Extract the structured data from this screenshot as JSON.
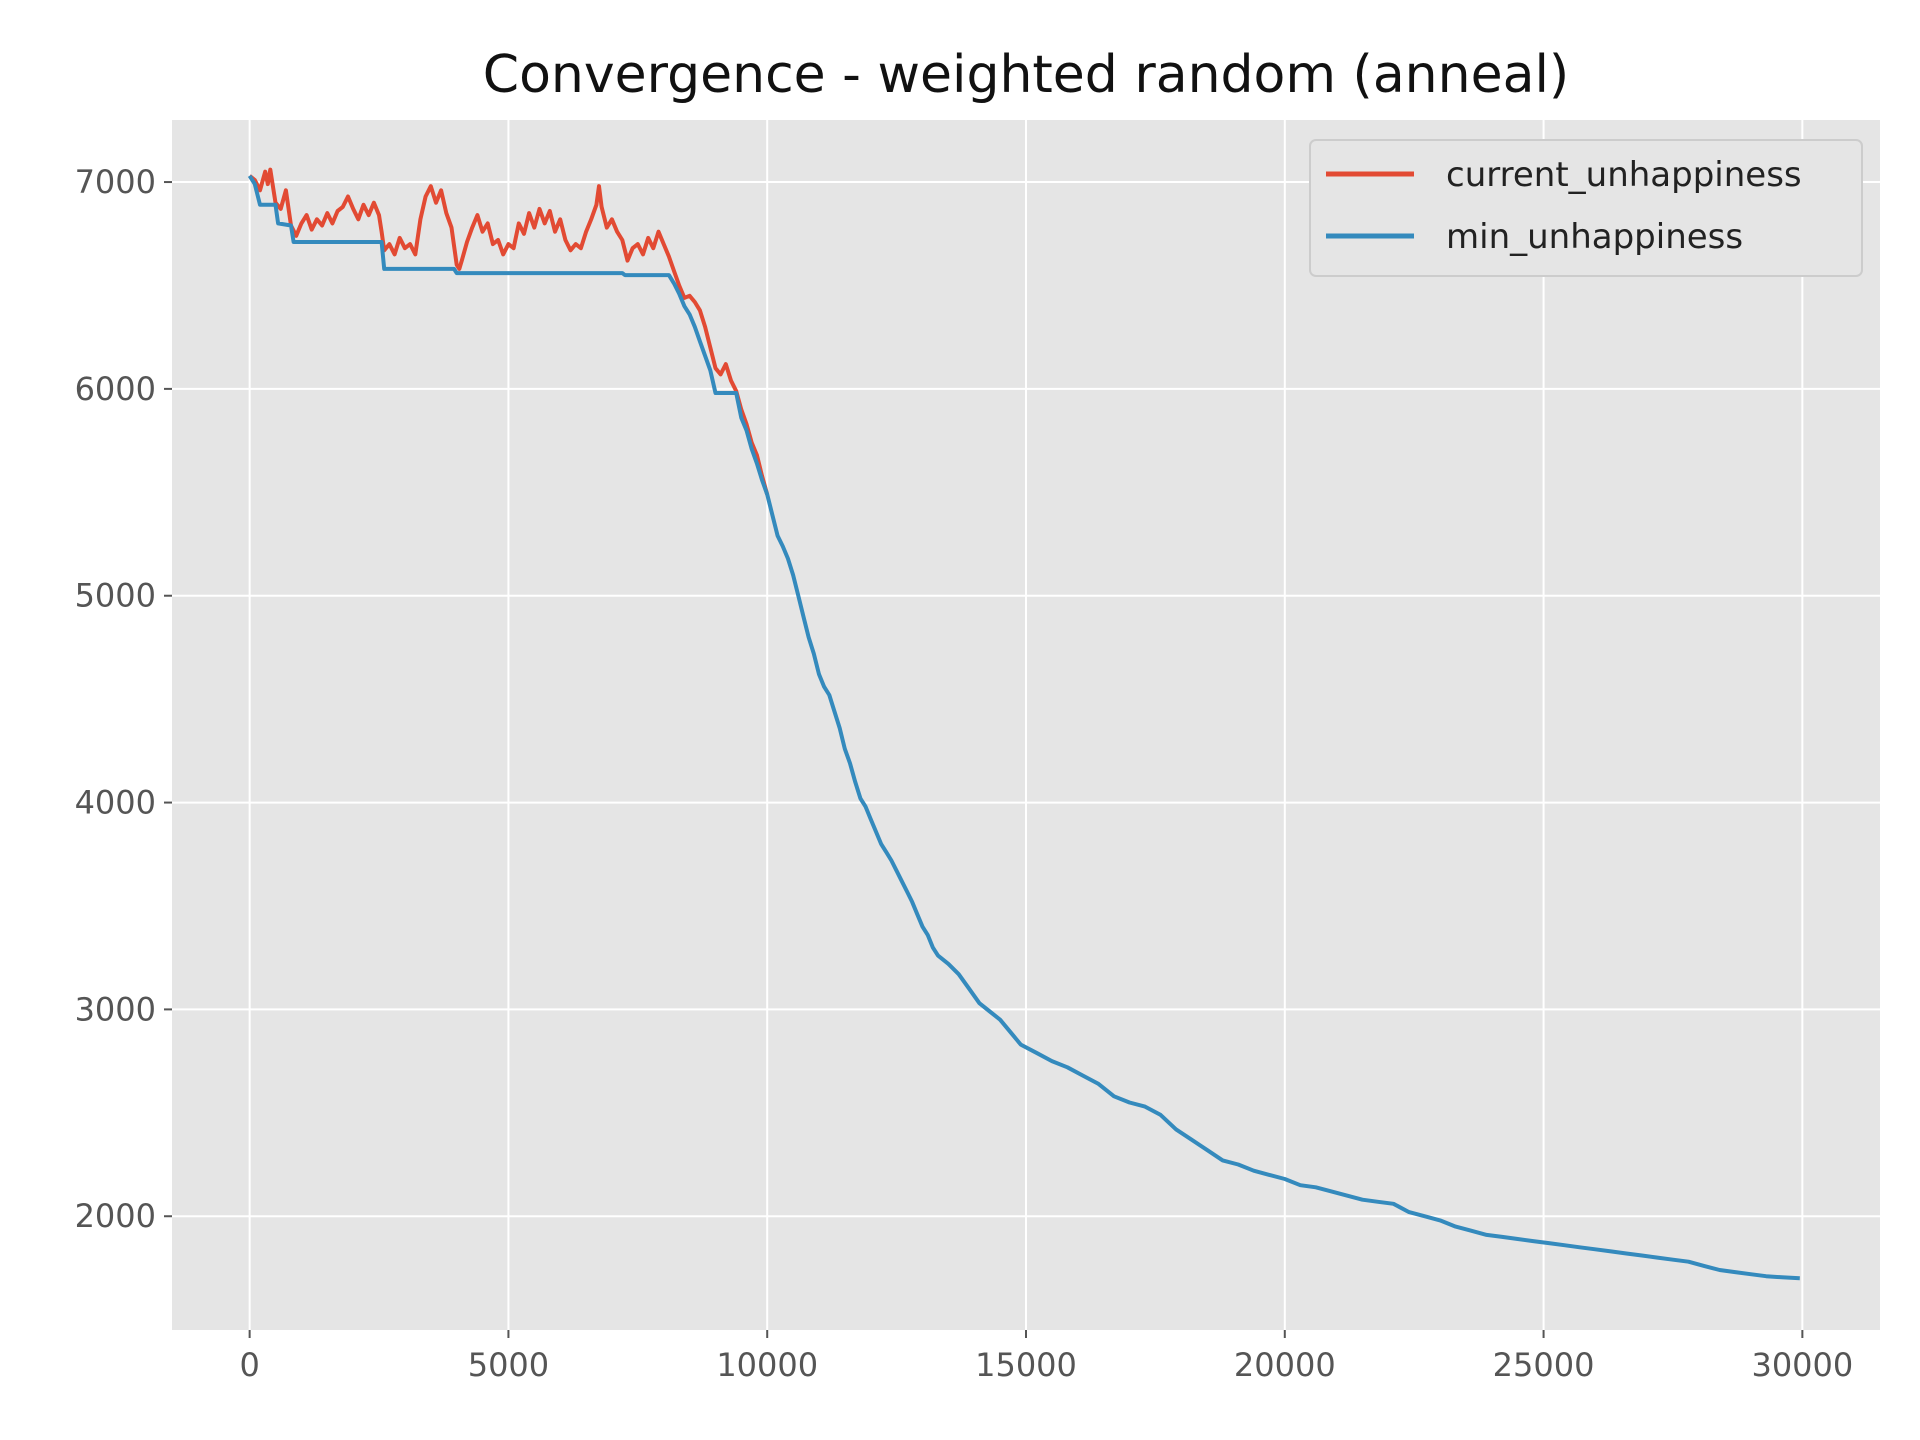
{
  "chart_data": {
    "type": "line",
    "title": "Convergence - weighted random (anneal)",
    "xlabel": "",
    "ylabel": "",
    "xlim": [
      -1500,
      31500
    ],
    "ylim": [
      1450,
      7300
    ],
    "xticks": [
      0,
      5000,
      10000,
      15000,
      20000,
      25000,
      30000
    ],
    "yticks": [
      2000,
      3000,
      4000,
      5000,
      6000,
      7000
    ],
    "xtick_labels": [
      "0",
      "5000",
      "10000",
      "15000",
      "20000",
      "25000",
      "30000"
    ],
    "ytick_labels": [
      "2000",
      "3000",
      "4000",
      "5000",
      "6000",
      "7000"
    ],
    "grid": true,
    "legend_position": "top-right",
    "series": [
      {
        "name": "current_unhappiness",
        "color": "#E24A33",
        "points": [
          [
            0,
            7030
          ],
          [
            100,
            7010
          ],
          [
            200,
            6960
          ],
          [
            300,
            7050
          ],
          [
            350,
            6990
          ],
          [
            400,
            7060
          ],
          [
            500,
            6900
          ],
          [
            600,
            6870
          ],
          [
            700,
            6960
          ],
          [
            800,
            6790
          ],
          [
            900,
            6740
          ],
          [
            1000,
            6800
          ],
          [
            1100,
            6840
          ],
          [
            1200,
            6770
          ],
          [
            1300,
            6820
          ],
          [
            1400,
            6790
          ],
          [
            1500,
            6850
          ],
          [
            1600,
            6800
          ],
          [
            1700,
            6860
          ],
          [
            1800,
            6880
          ],
          [
            1900,
            6930
          ],
          [
            2000,
            6870
          ],
          [
            2100,
            6820
          ],
          [
            2200,
            6890
          ],
          [
            2300,
            6840
          ],
          [
            2400,
            6900
          ],
          [
            2500,
            6840
          ],
          [
            2550,
            6760
          ],
          [
            2600,
            6670
          ],
          [
            2700,
            6700
          ],
          [
            2800,
            6650
          ],
          [
            2900,
            6730
          ],
          [
            3000,
            6680
          ],
          [
            3100,
            6700
          ],
          [
            3200,
            6650
          ],
          [
            3300,
            6820
          ],
          [
            3400,
            6930
          ],
          [
            3500,
            6980
          ],
          [
            3600,
            6900
          ],
          [
            3700,
            6960
          ],
          [
            3800,
            6850
          ],
          [
            3900,
            6780
          ],
          [
            4000,
            6600
          ],
          [
            4050,
            6580
          ],
          [
            4100,
            6620
          ],
          [
            4200,
            6710
          ],
          [
            4300,
            6780
          ],
          [
            4400,
            6840
          ],
          [
            4500,
            6760
          ],
          [
            4600,
            6800
          ],
          [
            4700,
            6700
          ],
          [
            4800,
            6720
          ],
          [
            4900,
            6650
          ],
          [
            5000,
            6700
          ],
          [
            5100,
            6680
          ],
          [
            5200,
            6800
          ],
          [
            5300,
            6750
          ],
          [
            5400,
            6850
          ],
          [
            5500,
            6780
          ],
          [
            5600,
            6870
          ],
          [
            5700,
            6800
          ],
          [
            5800,
            6860
          ],
          [
            5900,
            6760
          ],
          [
            6000,
            6820
          ],
          [
            6100,
            6720
          ],
          [
            6200,
            6670
          ],
          [
            6300,
            6700
          ],
          [
            6400,
            6680
          ],
          [
            6500,
            6760
          ],
          [
            6600,
            6820
          ],
          [
            6700,
            6890
          ],
          [
            6750,
            6980
          ],
          [
            6800,
            6880
          ],
          [
            6900,
            6780
          ],
          [
            7000,
            6820
          ],
          [
            7100,
            6760
          ],
          [
            7200,
            6720
          ],
          [
            7300,
            6620
          ],
          [
            7400,
            6680
          ],
          [
            7500,
            6700
          ],
          [
            7600,
            6650
          ],
          [
            7700,
            6730
          ],
          [
            7800,
            6680
          ],
          [
            7900,
            6760
          ],
          [
            8000,
            6700
          ],
          [
            8100,
            6640
          ],
          [
            8200,
            6570
          ],
          [
            8300,
            6500
          ],
          [
            8400,
            6440
          ],
          [
            8500,
            6450
          ],
          [
            8600,
            6420
          ],
          [
            8700,
            6380
          ],
          [
            8800,
            6300
          ],
          [
            8900,
            6200
          ],
          [
            9000,
            6100
          ],
          [
            9100,
            6070
          ],
          [
            9200,
            6120
          ],
          [
            9300,
            6040
          ],
          [
            9400,
            5990
          ],
          [
            9500,
            5900
          ],
          [
            9600,
            5830
          ],
          [
            9700,
            5740
          ],
          [
            9800,
            5680
          ],
          [
            9900,
            5580
          ],
          [
            10000,
            5490
          ]
        ]
      },
      {
        "name": "min_unhappiness",
        "color": "#348ABD",
        "points": [
          [
            0,
            7030
          ],
          [
            100,
            6990
          ],
          [
            200,
            6890
          ],
          [
            500,
            6890
          ],
          [
            550,
            6800
          ],
          [
            800,
            6790
          ],
          [
            850,
            6710
          ],
          [
            2550,
            6710
          ],
          [
            2600,
            6580
          ],
          [
            3950,
            6580
          ],
          [
            4000,
            6560
          ],
          [
            7200,
            6560
          ],
          [
            7250,
            6550
          ],
          [
            8100,
            6550
          ],
          [
            8200,
            6510
          ],
          [
            8300,
            6460
          ],
          [
            8400,
            6400
          ],
          [
            8500,
            6360
          ],
          [
            8600,
            6300
          ],
          [
            8700,
            6230
          ],
          [
            8800,
            6160
          ],
          [
            8900,
            6090
          ],
          [
            9000,
            5980
          ],
          [
            9400,
            5980
          ],
          [
            9500,
            5860
          ],
          [
            9600,
            5800
          ],
          [
            9700,
            5710
          ],
          [
            9800,
            5640
          ],
          [
            9900,
            5560
          ],
          [
            10000,
            5490
          ],
          [
            10100,
            5390
          ],
          [
            10200,
            5290
          ],
          [
            10300,
            5240
          ],
          [
            10400,
            5180
          ],
          [
            10500,
            5100
          ],
          [
            10600,
            5000
          ],
          [
            10700,
            4900
          ],
          [
            10800,
            4800
          ],
          [
            10900,
            4720
          ],
          [
            11000,
            4620
          ],
          [
            11100,
            4560
          ],
          [
            11200,
            4520
          ],
          [
            11300,
            4440
          ],
          [
            11400,
            4360
          ],
          [
            11500,
            4260
          ],
          [
            11600,
            4190
          ],
          [
            11700,
            4100
          ],
          [
            11800,
            4020
          ],
          [
            11900,
            3980
          ],
          [
            12000,
            3920
          ],
          [
            12100,
            3860
          ],
          [
            12200,
            3800
          ],
          [
            12300,
            3760
          ],
          [
            12400,
            3720
          ],
          [
            12500,
            3670
          ],
          [
            12600,
            3620
          ],
          [
            12700,
            3570
          ],
          [
            12800,
            3520
          ],
          [
            12900,
            3460
          ],
          [
            13000,
            3400
          ],
          [
            13100,
            3360
          ],
          [
            13200,
            3300
          ],
          [
            13300,
            3260
          ],
          [
            13500,
            3220
          ],
          [
            13700,
            3170
          ],
          [
            13900,
            3100
          ],
          [
            14100,
            3030
          ],
          [
            14300,
            2990
          ],
          [
            14500,
            2950
          ],
          [
            14700,
            2890
          ],
          [
            14900,
            2830
          ],
          [
            15200,
            2790
          ],
          [
            15500,
            2750
          ],
          [
            15800,
            2720
          ],
          [
            16100,
            2680
          ],
          [
            16400,
            2640
          ],
          [
            16700,
            2580
          ],
          [
            17000,
            2550
          ],
          [
            17300,
            2530
          ],
          [
            17600,
            2490
          ],
          [
            17900,
            2420
          ],
          [
            18200,
            2370
          ],
          [
            18500,
            2320
          ],
          [
            18800,
            2270
          ],
          [
            19100,
            2250
          ],
          [
            19400,
            2220
          ],
          [
            19700,
            2200
          ],
          [
            20000,
            2180
          ],
          [
            20300,
            2150
          ],
          [
            20600,
            2140
          ],
          [
            20900,
            2120
          ],
          [
            21200,
            2100
          ],
          [
            21500,
            2080
          ],
          [
            21800,
            2070
          ],
          [
            22100,
            2060
          ],
          [
            22400,
            2020
          ],
          [
            22700,
            2000
          ],
          [
            23000,
            1980
          ],
          [
            23300,
            1950
          ],
          [
            23600,
            1930
          ],
          [
            23900,
            1910
          ],
          [
            24200,
            1900
          ],
          [
            24500,
            1890
          ],
          [
            24800,
            1880
          ],
          [
            25100,
            1870
          ],
          [
            25400,
            1860
          ],
          [
            25700,
            1850
          ],
          [
            26000,
            1840
          ],
          [
            26300,
            1830
          ],
          [
            26600,
            1820
          ],
          [
            26900,
            1810
          ],
          [
            27200,
            1800
          ],
          [
            27500,
            1790
          ],
          [
            27800,
            1780
          ],
          [
            28100,
            1760
          ],
          [
            28400,
            1740
          ],
          [
            28700,
            1730
          ],
          [
            29000,
            1720
          ],
          [
            29300,
            1710
          ],
          [
            29600,
            1705
          ],
          [
            29950,
            1700
          ]
        ]
      }
    ]
  }
}
